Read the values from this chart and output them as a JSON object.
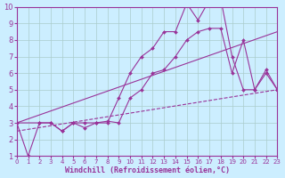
{
  "bg_color": "#cceeff",
  "line_color": "#993399",
  "grid_color": "#aacccc",
  "xlabel": "Windchill (Refroidissement éolien,°C)",
  "xlim": [
    0,
    23
  ],
  "ylim": [
    1,
    10
  ],
  "xticks": [
    0,
    1,
    2,
    3,
    4,
    5,
    6,
    7,
    8,
    9,
    10,
    11,
    12,
    13,
    14,
    15,
    16,
    17,
    18,
    19,
    20,
    21,
    22,
    23
  ],
  "yticks": [
    1,
    2,
    3,
    4,
    5,
    6,
    7,
    8,
    9,
    10
  ],
  "line1_x": [
    0,
    1,
    2,
    3,
    4,
    5,
    6,
    7,
    8,
    9,
    10,
    11,
    12,
    13,
    14,
    15,
    16,
    17,
    18,
    19,
    20,
    21,
    22,
    23
  ],
  "line1_y": [
    3.0,
    1.0,
    3.0,
    3.0,
    2.5,
    3.0,
    2.7,
    3.0,
    3.0,
    4.5,
    6.0,
    7.0,
    7.5,
    8.5,
    8.5,
    10.2,
    9.2,
    10.4,
    10.5,
    7.0,
    5.0,
    5.0,
    6.2,
    5.0
  ],
  "line2_x": [
    0,
    2,
    3,
    4,
    5,
    6,
    7,
    8,
    9,
    10,
    11,
    12,
    13,
    14,
    15,
    16,
    17,
    18,
    19,
    20,
    21,
    22,
    23
  ],
  "line2_y": [
    3.0,
    3.0,
    3.0,
    2.5,
    3.0,
    3.0,
    3.0,
    3.1,
    3.0,
    4.5,
    5.0,
    6.0,
    6.2,
    7.0,
    8.0,
    8.5,
    8.7,
    8.7,
    6.0,
    8.0,
    5.0,
    6.0,
    5.0
  ],
  "line3_x": [
    0,
    23
  ],
  "line3_y": [
    3.0,
    8.5
  ],
  "line4_x": [
    0,
    23
  ],
  "line4_y": [
    2.5,
    5.0
  ],
  "fontsize_axis": 6,
  "fontsize_tick_x": 5,
  "fontsize_tick_y": 6,
  "marker": "D",
  "markersize": 2.0
}
